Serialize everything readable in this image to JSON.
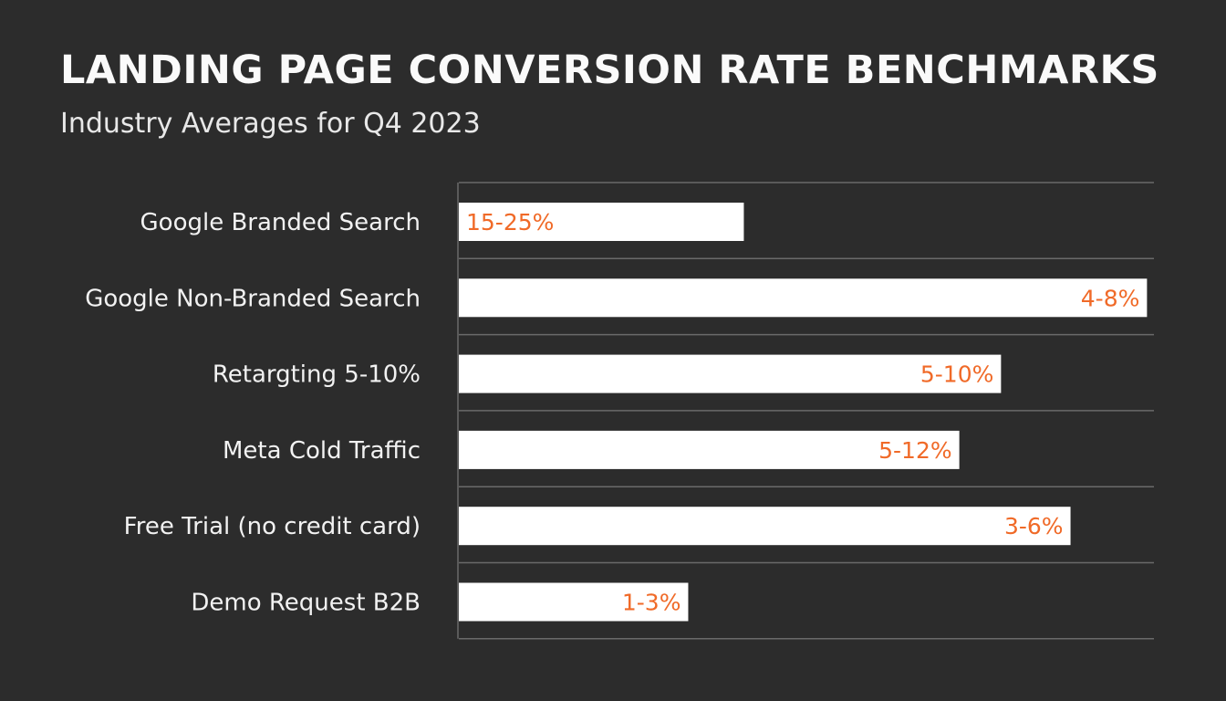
{
  "chart_data": {
    "type": "bar",
    "orientation": "horizontal",
    "title": "LANDING PAGE CONVERSION RATE BENCHMARKS",
    "subtitle": "Industry Averages for Q4 2023",
    "categories": [
      "Google Branded Search",
      "Google Non-Branded Search",
      "Retargting 5-10%",
      "Meta Cold Traffic",
      "Free Trial (no credit card)",
      "Demo Request B2B"
    ],
    "data_labels": [
      "15-25%",
      "4-8%",
      "5-10%",
      "5-12%",
      "3-6%",
      "1-3%"
    ],
    "values": [
      0.41,
      0.99,
      0.78,
      0.72,
      0.88,
      0.33
    ],
    "value_unit": "fraction of plot width",
    "grid": true,
    "legend": "none",
    "colors": {
      "background": "#2c2c2c",
      "bar": "#ffffff",
      "label": "#f06a28",
      "grid": "#6a6a6a",
      "text": "#f2f2f2"
    }
  }
}
